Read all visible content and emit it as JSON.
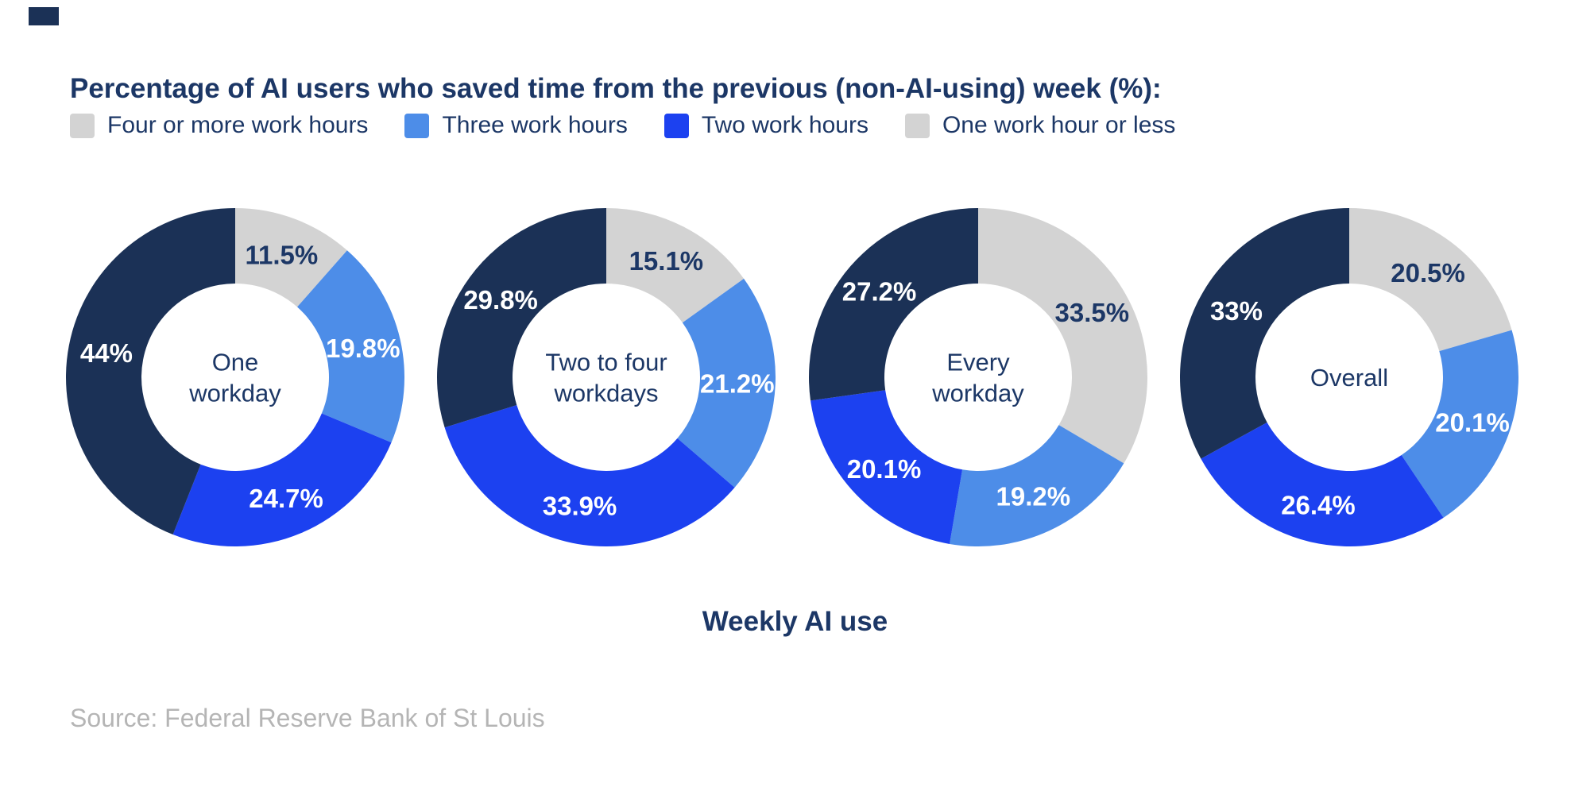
{
  "title": "Percentage of AI users who saved time from the previous (non-AI-using) week (%):",
  "colors": {
    "text_navy": "#1C3766",
    "brand_mark": "#1B3156",
    "source_gray": "#B5B5B5",
    "background": "#FFFFFF"
  },
  "legend": [
    {
      "label": "Four or more work hours",
      "color": "#D3D3D3"
    },
    {
      "label": "Three work hours",
      "color": "#4D8DE8"
    },
    {
      "label": "Two work hours",
      "color": "#1C41F0"
    },
    {
      "label": "One work hour or less",
      "color": "#D3D3D3"
    }
  ],
  "x_axis_label": "Weekly AI use",
  "source": "Source: Federal Reserve Bank of St Louis",
  "chart_data": {
    "type": "pie",
    "variant": "donut",
    "title": "Percentage of AI users who saved time from the previous (non-AI-using) week (%):",
    "categories": [
      "Four or more work hours",
      "Three work hours",
      "Two work hours",
      "One work hour or less"
    ],
    "slice_colors": [
      "#D3D3D3",
      "#4D8DE8",
      "#1C41F0",
      "#1B3156"
    ],
    "value_label_colors": [
      "#1C3766",
      "#FFFFFF",
      "#FFFFFF",
      "#FFFFFF"
    ],
    "legend_position": "top",
    "start_angle_deg": 0,
    "direction": "clockwise",
    "xlabel": "Weekly AI use",
    "groups": [
      {
        "label": "One workday",
        "label_lines": [
          "One",
          "workday"
        ],
        "values": [
          11.5,
          19.8,
          24.7,
          44
        ],
        "value_labels": [
          "11.5%",
          "19.8%",
          "24.7%",
          "44%"
        ]
      },
      {
        "label": "Two to four workdays",
        "label_lines": [
          "Two to four",
          "workdays"
        ],
        "values": [
          15.1,
          21.2,
          33.9,
          29.8
        ],
        "value_labels": [
          "15.1%",
          "21.2%",
          "33.9%",
          "29.8%"
        ]
      },
      {
        "label": "Every workday",
        "label_lines": [
          "Every",
          "workday"
        ],
        "values": [
          33.5,
          19.2,
          20.1,
          27.2
        ],
        "value_labels": [
          "33.5%",
          "19.2%",
          "20.1%",
          "27.2%"
        ]
      },
      {
        "label": "Overall",
        "label_lines": [
          "Overall"
        ],
        "values": [
          20.5,
          20.1,
          26.4,
          33
        ],
        "value_labels": [
          "20.5%",
          "20.1%",
          "26.4%",
          "33%"
        ]
      }
    ]
  }
}
